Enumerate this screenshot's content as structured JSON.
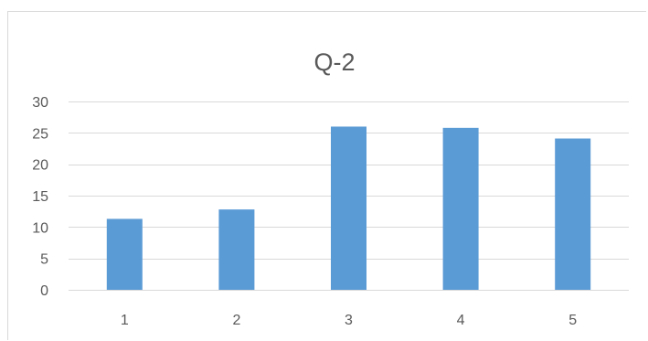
{
  "chart_data": {
    "type": "bar",
    "title": "Q-2",
    "categories": [
      "1",
      "2",
      "3",
      "4",
      "5"
    ],
    "values": [
      11.3,
      12.8,
      26,
      25.8,
      24.1
    ],
    "ylim": [
      0,
      30
    ],
    "yticks": [
      0,
      5,
      10,
      15,
      20,
      25,
      30
    ],
    "xlabel": "",
    "ylabel": "",
    "grid": true,
    "legend": "none",
    "colors": {
      "bar": "#5b9bd5",
      "grid": "#d9d9d9",
      "axis": "#d9d9d9",
      "text": "#595959"
    }
  }
}
